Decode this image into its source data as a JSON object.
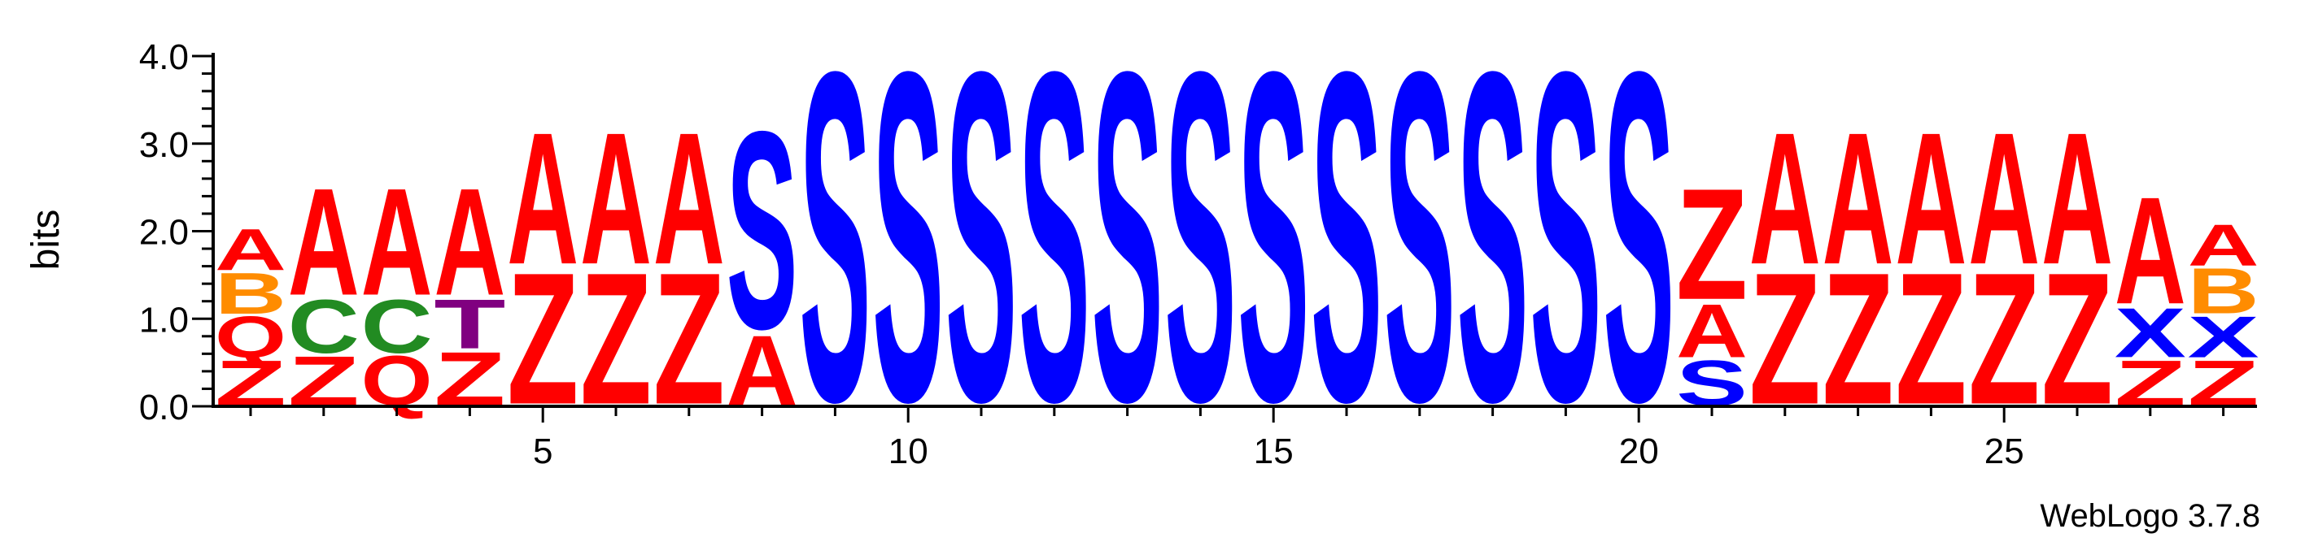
{
  "chart_data": {
    "type": "sequence-logo",
    "ylabel": "bits",
    "ylim": [
      0,
      4.0
    ],
    "y_ticks": [
      "0.0",
      "1.0",
      "2.0",
      "3.0",
      "4.0"
    ],
    "x_ticks": [
      5,
      10,
      15,
      20,
      25
    ],
    "x_tick_labels": [
      "5",
      "10",
      "15",
      "20",
      "25"
    ],
    "positions": [
      1,
      2,
      3,
      4,
      5,
      6,
      7,
      8,
      9,
      10,
      11,
      12,
      13,
      14,
      15,
      16,
      17,
      18,
      19,
      20,
      21,
      22,
      23,
      24,
      25,
      26,
      27,
      28
    ],
    "colors": {
      "A": "#ff0000",
      "Z": "#ff0000",
      "Q": "#ff0000",
      "C": "#228b22",
      "T": "#800080",
      "S": "#0000ff",
      "X": "#0000ff",
      "B": "#ff8c00"
    },
    "stacks": [
      [
        {
          "letter": "Z",
          "bits": 0.55
        },
        {
          "letter": "Q",
          "bits": 0.5
        },
        {
          "letter": "B",
          "bits": 0.5
        },
        {
          "letter": "A",
          "bits": 0.5
        }
      ],
      [
        {
          "letter": "Z",
          "bits": 0.6
        },
        {
          "letter": "C",
          "bits": 0.65
        },
        {
          "letter": "A",
          "bits": 1.3
        }
      ],
      [
        {
          "letter": "Q",
          "bits": 0.6
        },
        {
          "letter": "C",
          "bits": 0.65
        },
        {
          "letter": "A",
          "bits": 1.3
        }
      ],
      [
        {
          "letter": "Z",
          "bits": 0.65
        },
        {
          "letter": "T",
          "bits": 0.6
        },
        {
          "letter": "A",
          "bits": 1.3
        }
      ],
      [
        {
          "letter": "Z",
          "bits": 1.6
        },
        {
          "letter": "A",
          "bits": 1.6
        }
      ],
      [
        {
          "letter": "Z",
          "bits": 1.6
        },
        {
          "letter": "A",
          "bits": 1.6
        }
      ],
      [
        {
          "letter": "Z",
          "bits": 1.6
        },
        {
          "letter": "A",
          "bits": 1.6
        }
      ],
      [
        {
          "letter": "A",
          "bits": 0.85
        },
        {
          "letter": "S",
          "bits": 2.4
        }
      ],
      [
        {
          "letter": "S",
          "bits": 4.0
        }
      ],
      [
        {
          "letter": "S",
          "bits": 4.0
        }
      ],
      [
        {
          "letter": "S",
          "bits": 4.0
        }
      ],
      [
        {
          "letter": "S",
          "bits": 4.0
        }
      ],
      [
        {
          "letter": "S",
          "bits": 4.0
        }
      ],
      [
        {
          "letter": "S",
          "bits": 4.0
        }
      ],
      [
        {
          "letter": "S",
          "bits": 4.0
        }
      ],
      [
        {
          "letter": "S",
          "bits": 4.0
        }
      ],
      [
        {
          "letter": "S",
          "bits": 4.0
        }
      ],
      [
        {
          "letter": "S",
          "bits": 4.0
        }
      ],
      [
        {
          "letter": "S",
          "bits": 4.0
        }
      ],
      [
        {
          "letter": "S",
          "bits": 4.0
        }
      ],
      [
        {
          "letter": "S",
          "bits": 0.55
        },
        {
          "letter": "A",
          "bits": 0.65
        },
        {
          "letter": "Z",
          "bits": 1.35
        }
      ],
      [
        {
          "letter": "Z",
          "bits": 1.6
        },
        {
          "letter": "A",
          "bits": 1.6
        }
      ],
      [
        {
          "letter": "Z",
          "bits": 1.6
        },
        {
          "letter": "A",
          "bits": 1.6
        }
      ],
      [
        {
          "letter": "Z",
          "bits": 1.6
        },
        {
          "letter": "A",
          "bits": 1.6
        }
      ],
      [
        {
          "letter": "Z",
          "bits": 1.6
        },
        {
          "letter": "A",
          "bits": 1.6
        }
      ],
      [
        {
          "letter": "Z",
          "bits": 1.6
        },
        {
          "letter": "A",
          "bits": 1.6
        }
      ],
      [
        {
          "letter": "Z",
          "bits": 0.55
        },
        {
          "letter": "X",
          "bits": 0.6
        },
        {
          "letter": "A",
          "bits": 1.3
        }
      ],
      [
        {
          "letter": "Z",
          "bits": 0.55
        },
        {
          "letter": "X",
          "bits": 0.5
        },
        {
          "letter": "B",
          "bits": 0.55
        },
        {
          "letter": "A",
          "bits": 0.5
        }
      ]
    ]
  },
  "footer": {
    "version_text": "WebLogo 3.7.8"
  }
}
